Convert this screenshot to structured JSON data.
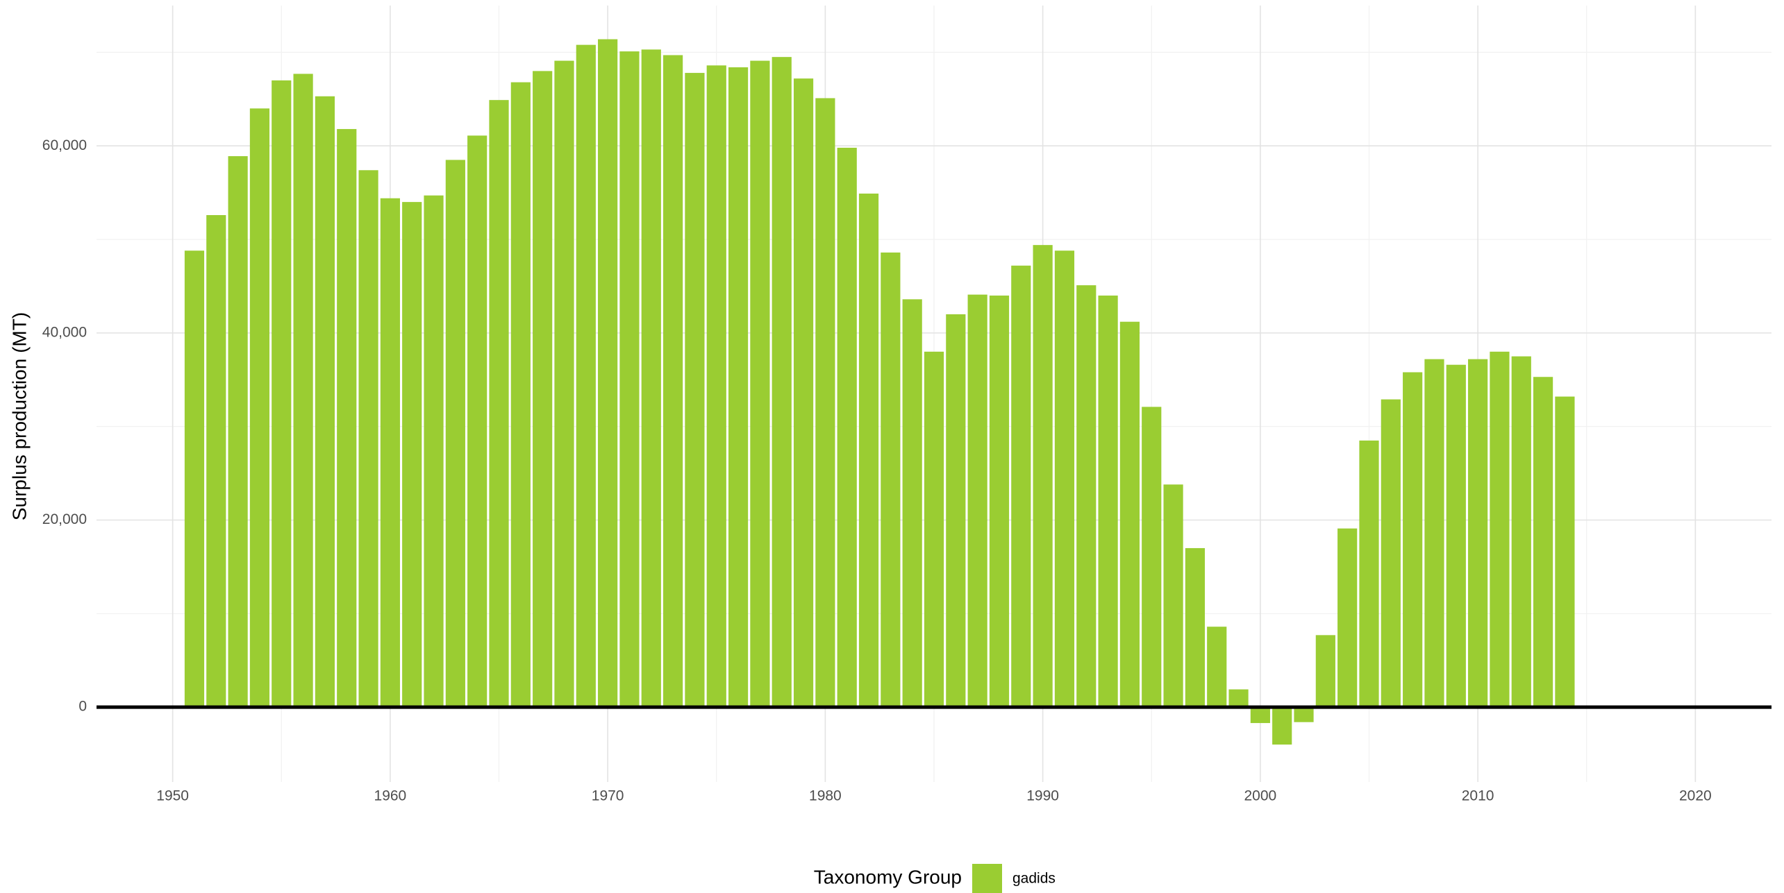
{
  "chart_data": {
    "type": "bar",
    "y_label": "Surplus production (MT)",
    "legend_title": "Taxonomy Group",
    "legend_position": "bottom",
    "grid": true,
    "hline": 0,
    "xlim": [
      1946.5,
      2023.5
    ],
    "xticks": [
      1950,
      1960,
      1970,
      1980,
      1990,
      2000,
      2010,
      2020
    ],
    "xminorticks": [
      1955,
      1965,
      1975,
      1985,
      1995,
      2005,
      2015
    ],
    "ylim": [
      -8000,
      75000
    ],
    "yticks": [
      0,
      {
        "value": 20000,
        "label": "20,000"
      },
      {
        "value": 40000,
        "label": "40,000"
      },
      {
        "value": 60000,
        "label": "60,000"
      }
    ],
    "yminorticks": [
      10000,
      30000,
      50000,
      70000
    ],
    "x": [
      1951,
      1952,
      1953,
      1954,
      1955,
      1956,
      1957,
      1958,
      1959,
      1960,
      1961,
      1962,
      1963,
      1964,
      1965,
      1966,
      1967,
      1968,
      1969,
      1970,
      1971,
      1972,
      1973,
      1974,
      1975,
      1976,
      1977,
      1978,
      1979,
      1980,
      1981,
      1982,
      1983,
      1984,
      1985,
      1986,
      1987,
      1988,
      1989,
      1990,
      1991,
      1992,
      1993,
      1994,
      1995,
      1996,
      1997,
      1998,
      1999,
      2000,
      2001,
      2002,
      2003,
      2004,
      2005,
      2006,
      2007,
      2008,
      2009,
      2010,
      2011,
      2012,
      2013,
      2014
    ],
    "series": [
      {
        "name": "gadids",
        "color": "#9acd32",
        "values": [
          48800,
          52600,
          58900,
          64000,
          67000,
          67700,
          65300,
          61800,
          57400,
          54400,
          54000,
          54700,
          58500,
          61100,
          64900,
          66800,
          68000,
          69100,
          70800,
          71400,
          70100,
          70300,
          69700,
          67800,
          68600,
          68400,
          69100,
          69500,
          67200,
          65100,
          59800,
          54900,
          48600,
          43600,
          38000,
          42000,
          44100,
          44000,
          47200,
          49400,
          48800,
          45100,
          44000,
          41200,
          32100,
          23800,
          17000,
          8600,
          1900,
          -1700,
          -4000,
          -1600,
          7700,
          19100,
          28500,
          32900,
          35800,
          37200,
          36600,
          37200,
          38000,
          37500,
          35300,
          33200
        ]
      }
    ]
  }
}
